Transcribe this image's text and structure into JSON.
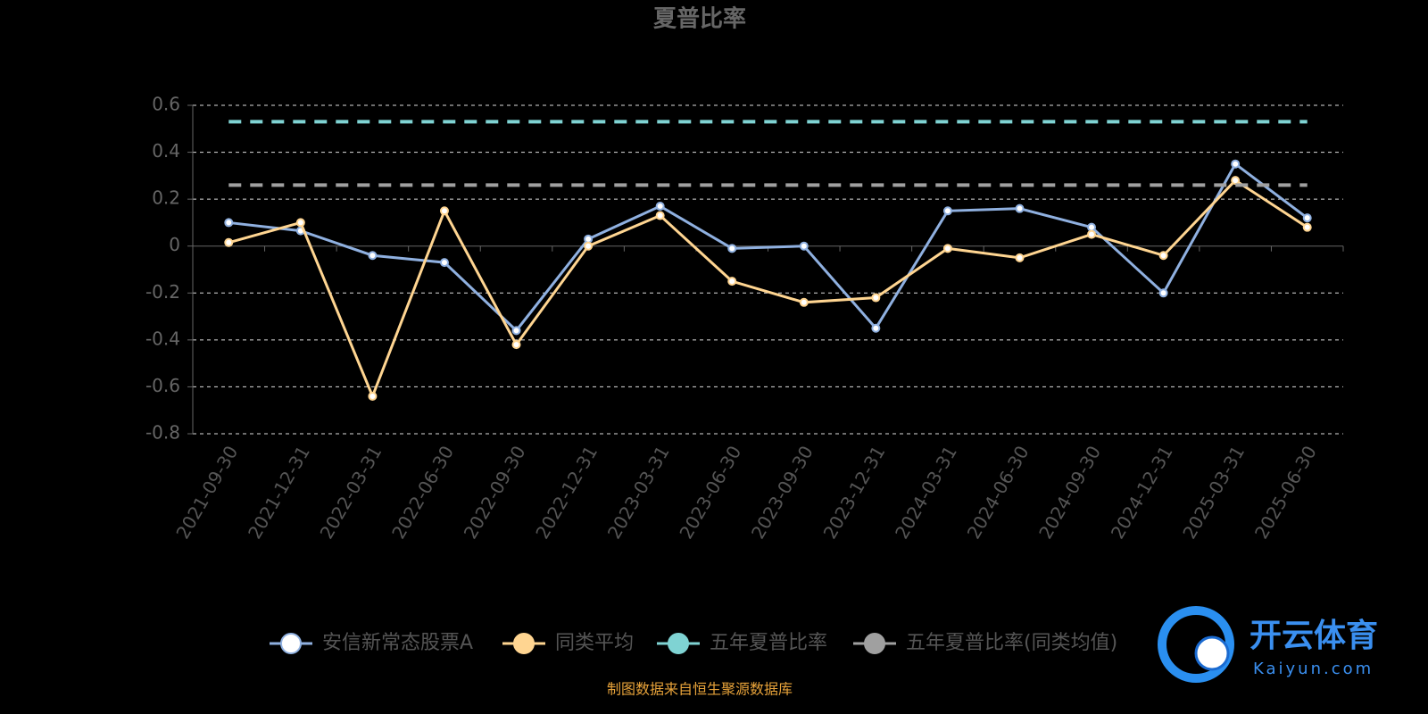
{
  "chart_data": {
    "type": "line",
    "title": "夏普比率",
    "categories": [
      "2021-09-30",
      "2021-12-31",
      "2022-03-31",
      "2022-06-30",
      "2022-09-30",
      "2022-12-31",
      "2023-03-31",
      "2023-06-30",
      "2023-09-30",
      "2023-12-31",
      "2024-03-31",
      "2024-06-30",
      "2024-09-30",
      "2024-12-31",
      "2025-03-31",
      "2025-06-30"
    ],
    "series": [
      {
        "name": "安信新常态股票A",
        "color": "#8fb0e0",
        "dashed": false,
        "values": [
          0.1,
          0.065,
          -0.04,
          -0.07,
          -0.36,
          0.03,
          0.17,
          -0.01,
          0.0,
          -0.35,
          0.15,
          0.16,
          0.08,
          -0.2,
          0.35,
          0.12
        ]
      },
      {
        "name": "同类平均",
        "color": "#ffd591",
        "dashed": false,
        "values": [
          0.015,
          0.1,
          -0.64,
          0.15,
          -0.42,
          0.0,
          0.13,
          -0.15,
          -0.24,
          -0.22,
          -0.01,
          -0.05,
          0.05,
          -0.04,
          0.28,
          0.08
        ]
      },
      {
        "name": "五年夏普比率",
        "color": "#7fd3d3",
        "dashed": true,
        "values": [
          0.53,
          0.53,
          0.53,
          0.53,
          0.53,
          0.53,
          0.53,
          0.53,
          0.53,
          0.53,
          0.53,
          0.53,
          0.53,
          0.53,
          0.53,
          0.53
        ]
      },
      {
        "name": "五年夏普比率(同类均值)",
        "color": "#a0a0a0",
        "dashed": true,
        "values": [
          0.26,
          0.26,
          0.26,
          0.26,
          0.26,
          0.26,
          0.26,
          0.26,
          0.26,
          0.26,
          0.26,
          0.26,
          0.26,
          0.26,
          0.26,
          0.26
        ]
      }
    ],
    "ylim": [
      -0.8,
      0.6
    ],
    "yticks": [
      0.6,
      0.4,
      0.2,
      0,
      -0.2,
      -0.4,
      -0.6,
      -0.8
    ],
    "grid": true,
    "legend": "bottom",
    "source": "制图数据来自恒生聚源数据库",
    "watermark": {
      "name": "开云体育",
      "url": "Kaiyun.com"
    }
  }
}
